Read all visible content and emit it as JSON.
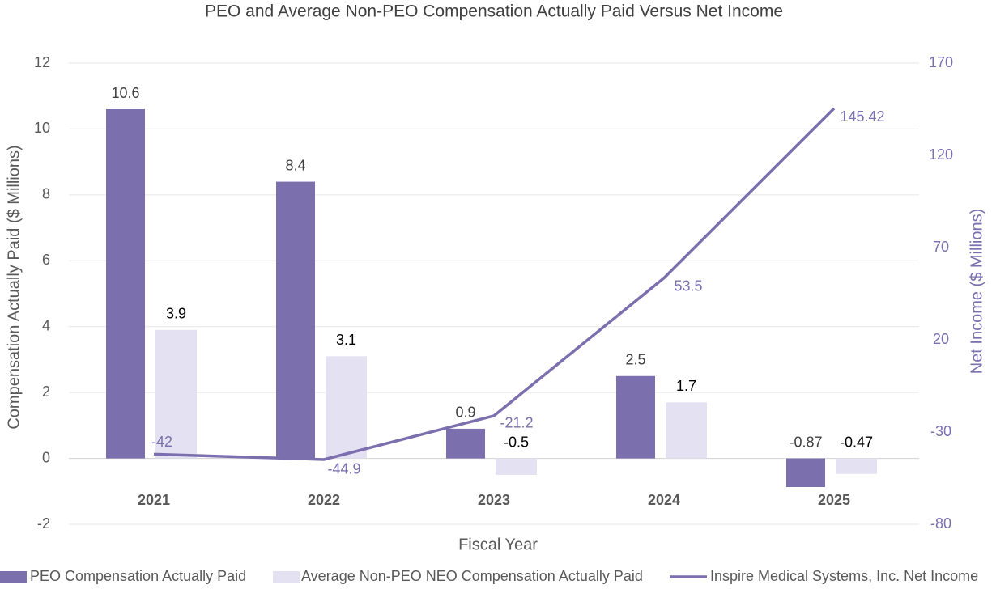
{
  "chart_data": {
    "type": "bar",
    "title": "PEO and Average Non-PEO Compensation Actually Paid Versus Net Income",
    "x_label": "Fiscal Year",
    "y_label": "Compensation Actually Paid ($ Millions)",
    "y2_label": "Net Income ($ Millions)",
    "categories": [
      "2021",
      "2022",
      "2023",
      "2024",
      "2025"
    ],
    "series": [
      {
        "name": "PEO Compensation Actually Paid",
        "type": "bar",
        "color": "#7b6fae",
        "values": [
          10.6,
          8.4,
          0.9,
          2.5,
          -0.87
        ]
      },
      {
        "name": "Average Non-PEO NEO Compensation Actually Paid",
        "type": "bar",
        "color": "#e3e1f2",
        "values": [
          3.9,
          3.1,
          -0.5,
          1.7,
          -0.47
        ]
      },
      {
        "name": "Inspire Medical Systems, Inc. Net Income",
        "type": "line",
        "axis": "y2",
        "color": "#7b6fae",
        "values": [
          -42,
          -44.9,
          -21.2,
          53.5,
          145.42
        ]
      }
    ],
    "ylim": [
      -2,
      12
    ],
    "yticks": [
      -2,
      0,
      2,
      4,
      6,
      8,
      10,
      12
    ],
    "y2lim": [
      -80,
      170
    ],
    "y2ticks": [
      -80,
      -30,
      20,
      70,
      120,
      170
    ],
    "grid": true,
    "legend": "bottom"
  }
}
